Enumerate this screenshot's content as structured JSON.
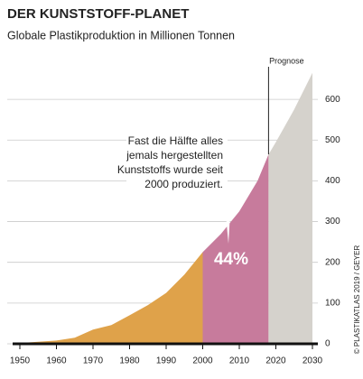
{
  "chart_data": {
    "type": "area",
    "title": "DER KUNSTSTOFF-PLANET",
    "subtitle": "Globale Plastikproduktion in Millionen Tonnen",
    "series": [
      {
        "color": "#dfa24a",
        "x": [
          1950,
          1955,
          1960,
          1965,
          1970,
          1975,
          1980,
          1985,
          1990,
          1995,
          2000
        ],
        "values": [
          2,
          5,
          8,
          15,
          35,
          46,
          70,
          95,
          125,
          170,
          225
        ]
      },
      {
        "color": "#c77b9c",
        "x": [
          2000,
          2005,
          2010,
          2015,
          2018
        ],
        "values": [
          225,
          270,
          325,
          400,
          465
        ]
      },
      {
        "color": "#d5d2cc",
        "x": [
          2018,
          2020,
          2025,
          2030
        ],
        "values": [
          465,
          495,
          575,
          665
        ]
      }
    ],
    "xlim": [
      1950,
      2030
    ],
    "xticks": [
      1950,
      1960,
      1970,
      1980,
      1990,
      2000,
      2010,
      2020,
      2030
    ],
    "ylim": [
      0,
      680
    ],
    "yticks": [
      0,
      100,
      200,
      300,
      400,
      500,
      600
    ],
    "grid": true,
    "prognosis_label": "Prognose",
    "annotation": [
      "Fast die Hälfte alles",
      "jemals hergestellten",
      "Kunststoffs wurde seit",
      "2000 produziert."
    ],
    "highlight": "44%",
    "source": "© PLASTIKATLAS 2019 / GEYER"
  }
}
